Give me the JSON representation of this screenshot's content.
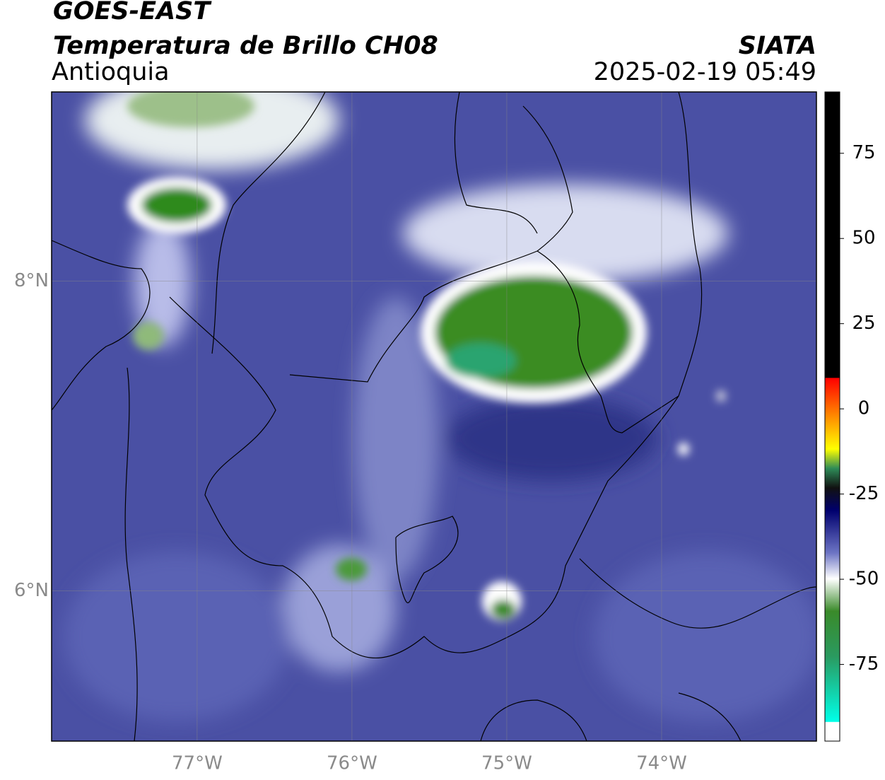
{
  "header": {
    "satellite": "GOES-EAST",
    "product": "Temperatura de Brillo CH08",
    "region": "Antioquia",
    "source": "SIATA",
    "timestamp": "2025-02-19 05:49"
  },
  "map": {
    "xlim": [
      -77.94,
      -73.0
    ],
    "ylim": [
      5.03,
      9.22
    ],
    "lon_ticks": [
      {
        "value": -77,
        "label": "77°W"
      },
      {
        "value": -76,
        "label": "76°W"
      },
      {
        "value": -75,
        "label": "75°W"
      },
      {
        "value": -74,
        "label": "74°W"
      }
    ],
    "lat_ticks": [
      {
        "value": 8,
        "label": "8°N"
      },
      {
        "value": 6,
        "label": "6°N"
      }
    ]
  },
  "colorbar": {
    "lim": [
      -97.5,
      93
    ],
    "ticks": [
      75,
      50,
      25,
      0,
      -25,
      -50,
      -75
    ]
  }
}
